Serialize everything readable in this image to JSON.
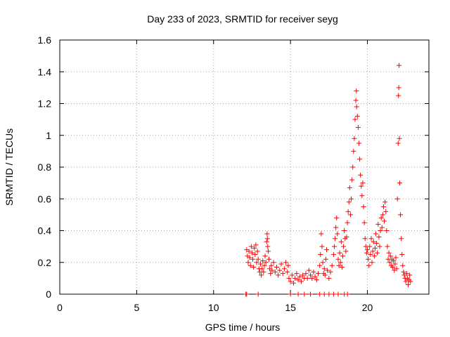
{
  "chart_data": {
    "type": "scatter",
    "title": "Day 233 of 2023, SRMTID for receiver seyg",
    "xlabel": "GPS time / hours",
    "ylabel": "SRMTID / TECUs",
    "xlim": [
      0,
      24
    ],
    "ylim": [
      0,
      1.6
    ],
    "xticks": [
      0,
      5,
      10,
      15,
      20
    ],
    "xtick_labels": [
      "0",
      "5",
      "10",
      "15",
      "20"
    ],
    "yticks": [
      0,
      0.2,
      0.4,
      0.6,
      0.8,
      1.0,
      1.2,
      1.4,
      1.6
    ],
    "ytick_labels": [
      "0",
      "0.2",
      "0.4",
      "0.6",
      "0.8",
      "1",
      "1.2",
      "1.4",
      "1.6"
    ],
    "grid": true,
    "marker": "+",
    "color": "#ff0000",
    "series": [
      {
        "name": "SRMTID",
        "points": [
          [
            12.1,
            0.0
          ],
          [
            12.15,
            0.0
          ],
          [
            12.9,
            0.0
          ],
          [
            15.0,
            0.0
          ],
          [
            15.5,
            0.0
          ],
          [
            15.9,
            0.0
          ],
          [
            16.3,
            0.0
          ],
          [
            16.9,
            0.0
          ],
          [
            17.2,
            0.0
          ],
          [
            17.5,
            0.0
          ],
          [
            17.8,
            0.0
          ],
          [
            18.1,
            0.0
          ],
          [
            18.5,
            0.0
          ],
          [
            18.7,
            0.0
          ],
          [
            12.15,
            0.28
          ],
          [
            12.2,
            0.24
          ],
          [
            12.25,
            0.2
          ],
          [
            12.3,
            0.27
          ],
          [
            12.35,
            0.23
          ],
          [
            12.4,
            0.18
          ],
          [
            12.45,
            0.3
          ],
          [
            12.5,
            0.26
          ],
          [
            12.55,
            0.22
          ],
          [
            12.6,
            0.17
          ],
          [
            12.65,
            0.29
          ],
          [
            12.7,
            0.25
          ],
          [
            12.75,
            0.31
          ],
          [
            12.8,
            0.2
          ],
          [
            12.85,
            0.27
          ],
          [
            12.9,
            0.22
          ],
          [
            12.95,
            0.16
          ],
          [
            13.0,
            0.14
          ],
          [
            13.05,
            0.19
          ],
          [
            13.1,
            0.12
          ],
          [
            13.15,
            0.16
          ],
          [
            13.2,
            0.21
          ],
          [
            13.25,
            0.14
          ],
          [
            13.3,
            0.18
          ],
          [
            13.35,
            0.24
          ],
          [
            13.4,
            0.2
          ],
          [
            13.45,
            0.33
          ],
          [
            13.48,
            0.38
          ],
          [
            13.5,
            0.35
          ],
          [
            13.52,
            0.3
          ],
          [
            13.55,
            0.27
          ],
          [
            13.6,
            0.22
          ],
          [
            13.65,
            0.16
          ],
          [
            13.7,
            0.13
          ],
          [
            13.75,
            0.18
          ],
          [
            13.8,
            0.15
          ],
          [
            13.9,
            0.2
          ],
          [
            14.0,
            0.14
          ],
          [
            14.1,
            0.17
          ],
          [
            14.2,
            0.12
          ],
          [
            14.3,
            0.15
          ],
          [
            14.4,
            0.19
          ],
          [
            14.5,
            0.13
          ],
          [
            14.6,
            0.16
          ],
          [
            14.7,
            0.2
          ],
          [
            14.8,
            0.14
          ],
          [
            14.85,
            0.18
          ],
          [
            14.9,
            0.1
          ],
          [
            15.0,
            0.08
          ],
          [
            15.1,
            0.12
          ],
          [
            15.2,
            0.07
          ],
          [
            15.3,
            0.1
          ],
          [
            15.4,
            0.13
          ],
          [
            15.5,
            0.09
          ],
          [
            15.6,
            0.11
          ],
          [
            15.7,
            0.08
          ],
          [
            15.8,
            0.12
          ],
          [
            15.9,
            0.1
          ],
          [
            16.0,
            0.13
          ],
          [
            16.1,
            0.1
          ],
          [
            16.2,
            0.15
          ],
          [
            16.3,
            0.12
          ],
          [
            16.4,
            0.1
          ],
          [
            16.5,
            0.14
          ],
          [
            16.6,
            0.11
          ],
          [
            16.7,
            0.09
          ],
          [
            16.8,
            0.13
          ],
          [
            16.9,
            0.18
          ],
          [
            16.95,
            0.25
          ],
          [
            17.0,
            0.38
          ],
          [
            17.05,
            0.3
          ],
          [
            17.1,
            0.2
          ],
          [
            17.15,
            0.13
          ],
          [
            17.2,
            0.16
          ],
          [
            17.25,
            0.12
          ],
          [
            17.3,
            0.22
          ],
          [
            17.35,
            0.28
          ],
          [
            17.4,
            0.15
          ],
          [
            17.5,
            0.1
          ],
          [
            17.6,
            0.14
          ],
          [
            17.7,
            0.18
          ],
          [
            17.8,
            0.25
          ],
          [
            17.85,
            0.3
          ],
          [
            17.9,
            0.35
          ],
          [
            17.95,
            0.42
          ],
          [
            18.0,
            0.48
          ],
          [
            18.05,
            0.38
          ],
          [
            18.1,
            0.22
          ],
          [
            18.15,
            0.18
          ],
          [
            18.2,
            0.26
          ],
          [
            18.25,
            0.2
          ],
          [
            18.3,
            0.33
          ],
          [
            18.35,
            0.17
          ],
          [
            18.4,
            0.24
          ],
          [
            18.45,
            0.3
          ],
          [
            18.5,
            0.4
          ],
          [
            18.55,
            0.35
          ],
          [
            18.6,
            0.27
          ],
          [
            18.65,
            0.36
          ],
          [
            18.7,
            0.45
          ],
          [
            18.75,
            0.52
          ],
          [
            18.8,
            0.58
          ],
          [
            18.85,
            0.67
          ],
          [
            18.9,
            0.5
          ],
          [
            18.95,
            0.6
          ],
          [
            19.0,
            0.72
          ],
          [
            19.05,
            0.8
          ],
          [
            19.1,
            0.9
          ],
          [
            19.15,
            0.98
          ],
          [
            19.2,
            1.1
          ],
          [
            19.25,
            1.22
          ],
          [
            19.28,
            1.28
          ],
          [
            19.3,
            1.18
          ],
          [
            19.35,
            1.12
          ],
          [
            19.4,
            1.05
          ],
          [
            19.45,
            0.95
          ],
          [
            19.5,
            0.85
          ],
          [
            19.55,
            0.75
          ],
          [
            19.6,
            0.68
          ],
          [
            19.65,
            0.62
          ],
          [
            19.7,
            0.7
          ],
          [
            19.75,
            0.55
          ],
          [
            19.8,
            0.45
          ],
          [
            19.85,
            0.35
          ],
          [
            19.9,
            0.3
          ],
          [
            19.95,
            0.26
          ],
          [
            20.0,
            0.28
          ],
          [
            20.05,
            0.22
          ],
          [
            20.1,
            0.18
          ],
          [
            20.15,
            0.3
          ],
          [
            20.2,
            0.25
          ],
          [
            20.25,
            0.35
          ],
          [
            20.3,
            0.2
          ],
          [
            20.35,
            0.27
          ],
          [
            20.4,
            0.33
          ],
          [
            20.45,
            0.24
          ],
          [
            20.5,
            0.29
          ],
          [
            20.55,
            0.38
          ],
          [
            20.6,
            0.32
          ],
          [
            20.65,
            0.26
          ],
          [
            20.7,
            0.44
          ],
          [
            20.75,
            0.36
          ],
          [
            20.8,
            0.3
          ],
          [
            20.85,
            0.4
          ],
          [
            20.9,
            0.48
          ],
          [
            20.95,
            0.42
          ],
          [
            21.0,
            0.5
          ],
          [
            21.05,
            0.55
          ],
          [
            21.1,
            0.46
          ],
          [
            21.15,
            0.58
          ],
          [
            21.2,
            0.52
          ],
          [
            21.25,
            0.4
          ],
          [
            21.3,
            0.3
          ],
          [
            21.35,
            0.22
          ],
          [
            21.4,
            0.26
          ],
          [
            21.45,
            0.2
          ],
          [
            21.5,
            0.24
          ],
          [
            21.55,
            0.18
          ],
          [
            21.6,
            0.22
          ],
          [
            21.65,
            0.17
          ],
          [
            21.7,
            0.21
          ],
          [
            21.75,
            0.15
          ],
          [
            21.8,
            0.19
          ],
          [
            21.85,
            0.23
          ],
          [
            21.9,
            0.16
          ],
          [
            21.95,
            0.6
          ],
          [
            22.0,
            0.95
          ],
          [
            22.02,
            1.25
          ],
          [
            22.04,
            1.3
          ],
          [
            22.06,
            1.44
          ],
          [
            22.08,
            0.98
          ],
          [
            22.1,
            0.7
          ],
          [
            22.15,
            0.5
          ],
          [
            22.2,
            0.35
          ],
          [
            22.25,
            0.25
          ],
          [
            22.3,
            0.18
          ],
          [
            22.35,
            0.14
          ],
          [
            22.4,
            0.12
          ],
          [
            22.45,
            0.1
          ],
          [
            22.5,
            0.08
          ],
          [
            22.55,
            0.13
          ],
          [
            22.6,
            0.1
          ],
          [
            22.65,
            0.06
          ],
          [
            22.7,
            0.09
          ],
          [
            22.75,
            0.12
          ],
          [
            22.8,
            0.08
          ]
        ]
      }
    ]
  }
}
